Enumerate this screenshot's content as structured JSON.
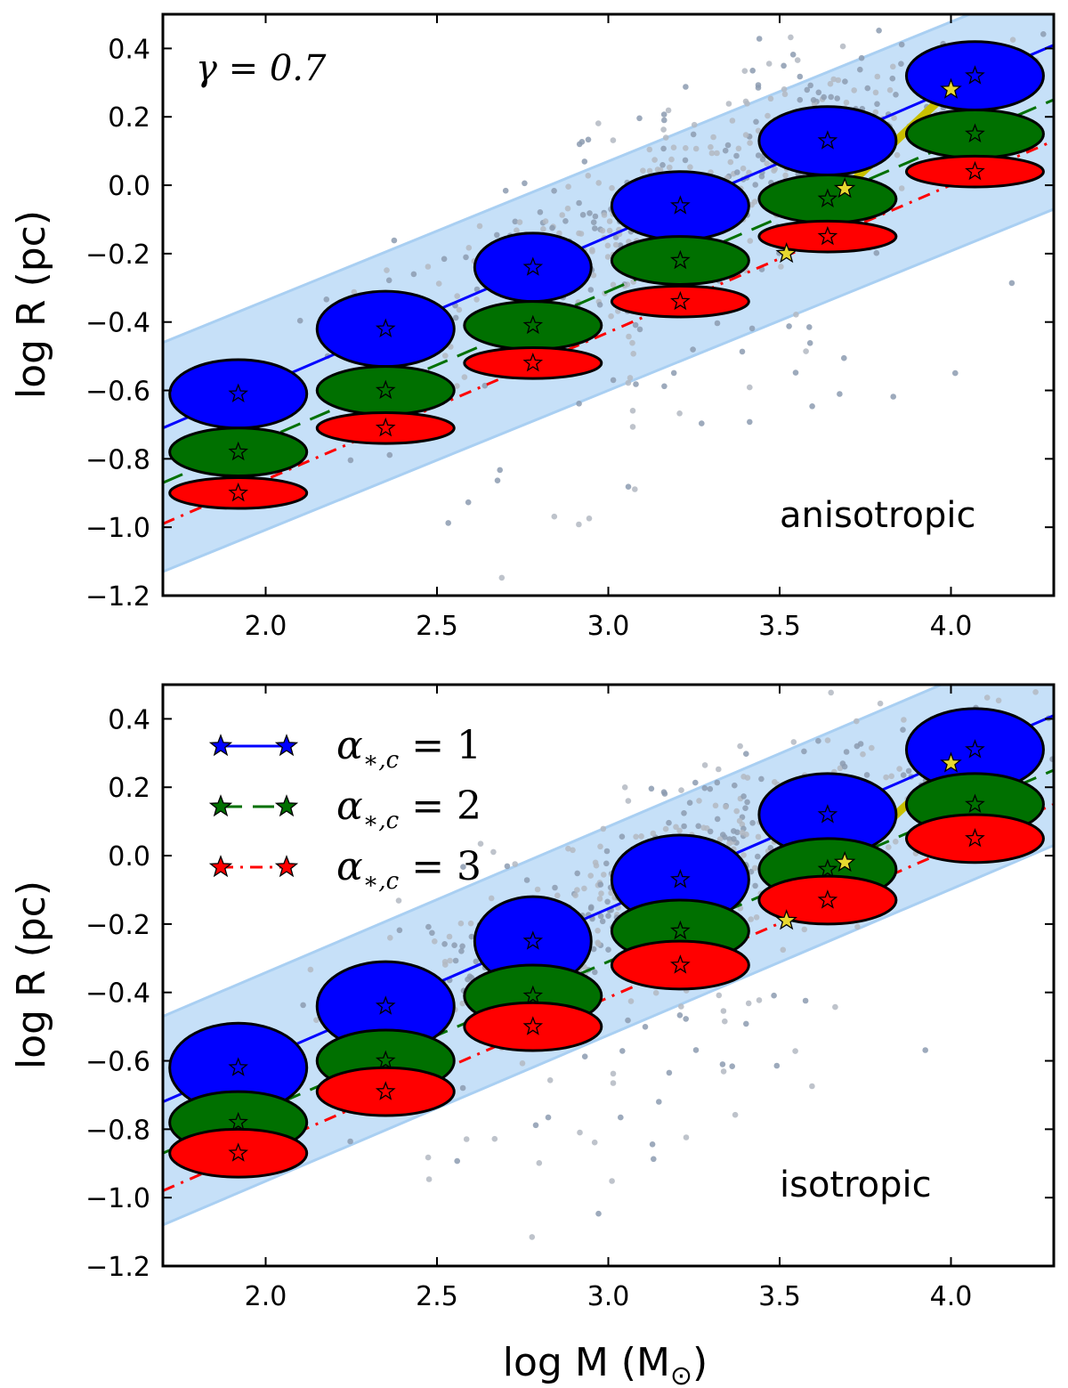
{
  "chart_data": {
    "type": "scatter",
    "shared": {
      "xlabel": "log M (M",
      "xlabel_sub": "⊙",
      "xlabel_close": ")",
      "xlim": [
        1.7,
        4.3
      ],
      "xticks": [
        "2.0",
        "2.5",
        "3.0",
        "3.5",
        "4.0"
      ],
      "xtick_values": [
        2.0,
        2.5,
        3.0,
        3.5,
        4.0
      ],
      "ylabel": "log R (pc)",
      "ylim": [
        -1.2,
        0.5
      ],
      "yticks": [
        "0.4",
        "0.2",
        "0.0",
        "−0.2",
        "−0.4",
        "−0.6",
        "−0.8",
        "−1.0",
        "−1.2"
      ],
      "ytick_values": [
        0.4,
        0.2,
        0.0,
        -0.2,
        -0.4,
        -0.6,
        -0.8,
        -1.0,
        -1.2
      ],
      "gamma_label": "γ = 0.7",
      "legend": [
        {
          "symbol": "α",
          "sub": "∗,c",
          "eq": " = 1",
          "color": "#0000ff",
          "style": "solid"
        },
        {
          "symbol": "α",
          "sub": "∗,c",
          "eq": " = 2",
          "color": "#007000",
          "style": "dashed"
        },
        {
          "symbol": "α",
          "sub": "∗,c",
          "eq": " = 3",
          "color": "#ff0000",
          "style": "dashdot"
        }
      ],
      "band_color": "#c6e0f8",
      "band_edge_color": "#a9cff2",
      "scatter_color_dark": "#8c9bb0",
      "track_color": "#c8c000",
      "series_x": [
        1.92,
        2.35,
        2.78,
        3.21,
        3.64,
        4.07
      ]
    },
    "panels": [
      {
        "label": "anisotropic",
        "band_lower": {
          "x": [
            1.7,
            4.3
          ],
          "y": [
            -1.13,
            -0.07
          ]
        },
        "band_upper": {
          "x": [
            1.7,
            4.3
          ],
          "y": [
            -0.46,
            0.6
          ]
        },
        "series": [
          {
            "name": "α∗,c=1",
            "color": "#0000ff",
            "fit": {
              "x": [
                1.7,
                4.3
              ],
              "y": [
                -0.71,
                0.41
              ]
            },
            "y": [
              -0.61,
              -0.42,
              -0.24,
              -0.06,
              0.13,
              0.32
            ],
            "ell_w": [
              0.2,
              0.2,
              0.17,
              0.2,
              0.2,
              0.2
            ],
            "ell_h": [
              0.1,
              0.11,
              0.1,
              0.1,
              0.1,
              0.1
            ]
          },
          {
            "name": "α∗,c=2",
            "color": "#007000",
            "fit": {
              "x": [
                1.7,
                4.3
              ],
              "y": [
                -0.87,
                0.25
              ]
            },
            "y": [
              -0.78,
              -0.6,
              -0.41,
              -0.22,
              -0.04,
              0.15
            ],
            "ell_w": [
              0.2,
              0.2,
              0.2,
              0.2,
              0.2,
              0.2
            ],
            "ell_h": [
              0.07,
              0.07,
              0.07,
              0.07,
              0.07,
              0.07
            ]
          },
          {
            "name": "α∗,c=3",
            "color": "#ff0000",
            "fit": {
              "x": [
                1.7,
                4.3
              ],
              "y": [
                -0.99,
                0.13
              ]
            },
            "y": [
              -0.9,
              -0.71,
              -0.52,
              -0.34,
              -0.15,
              0.04
            ],
            "ell_w": [
              0.2,
              0.2,
              0.2,
              0.2,
              0.2,
              0.2
            ],
            "ell_h": [
              0.045,
              0.045,
              0.045,
              0.045,
              0.045,
              0.045
            ]
          }
        ],
        "track": {
          "x": [
            3.52,
            3.69,
            4.0
          ],
          "y": [
            -0.2,
            -0.01,
            0.28
          ]
        }
      },
      {
        "label": "isotropic",
        "band_lower": {
          "x": [
            1.7,
            4.3
          ],
          "y": [
            -1.08,
            0.03
          ]
        },
        "band_upper": {
          "x": [
            1.7,
            4.3
          ],
          "y": [
            -0.47,
            0.64
          ]
        },
        "series": [
          {
            "name": "α∗,c=1",
            "color": "#0000ff",
            "fit": {
              "x": [
                1.7,
                4.3
              ],
              "y": [
                -0.72,
                0.41
              ]
            },
            "y": [
              -0.62,
              -0.44,
              -0.25,
              -0.07,
              0.12,
              0.31
            ],
            "ell_w": [
              0.2,
              0.2,
              0.17,
              0.2,
              0.2,
              0.2
            ],
            "ell_h": [
              0.13,
              0.13,
              0.13,
              0.13,
              0.12,
              0.12
            ]
          },
          {
            "name": "α∗,c=2",
            "color": "#007000",
            "fit": {
              "x": [
                1.7,
                4.3
              ],
              "y": [
                -0.87,
                0.25
              ]
            },
            "y": [
              -0.78,
              -0.6,
              -0.41,
              -0.22,
              -0.04,
              0.15
            ],
            "ell_w": [
              0.2,
              0.2,
              0.2,
              0.2,
              0.2,
              0.2
            ],
            "ell_h": [
              0.09,
              0.09,
              0.09,
              0.09,
              0.09,
              0.09
            ]
          },
          {
            "name": "α∗,c=3",
            "color": "#ff0000",
            "fit": {
              "x": [
                1.7,
                4.3
              ],
              "y": [
                -0.98,
                0.15
              ]
            },
            "y": [
              -0.87,
              -0.69,
              -0.5,
              -0.32,
              -0.13,
              0.05
            ],
            "ell_w": [
              0.2,
              0.2,
              0.2,
              0.2,
              0.2,
              0.2
            ],
            "ell_h": [
              0.07,
              0.07,
              0.07,
              0.07,
              0.07,
              0.07
            ]
          }
        ],
        "track": {
          "x": [
            3.52,
            3.69,
            4.0
          ],
          "y": [
            -0.19,
            -0.02,
            0.27
          ]
        }
      }
    ]
  }
}
